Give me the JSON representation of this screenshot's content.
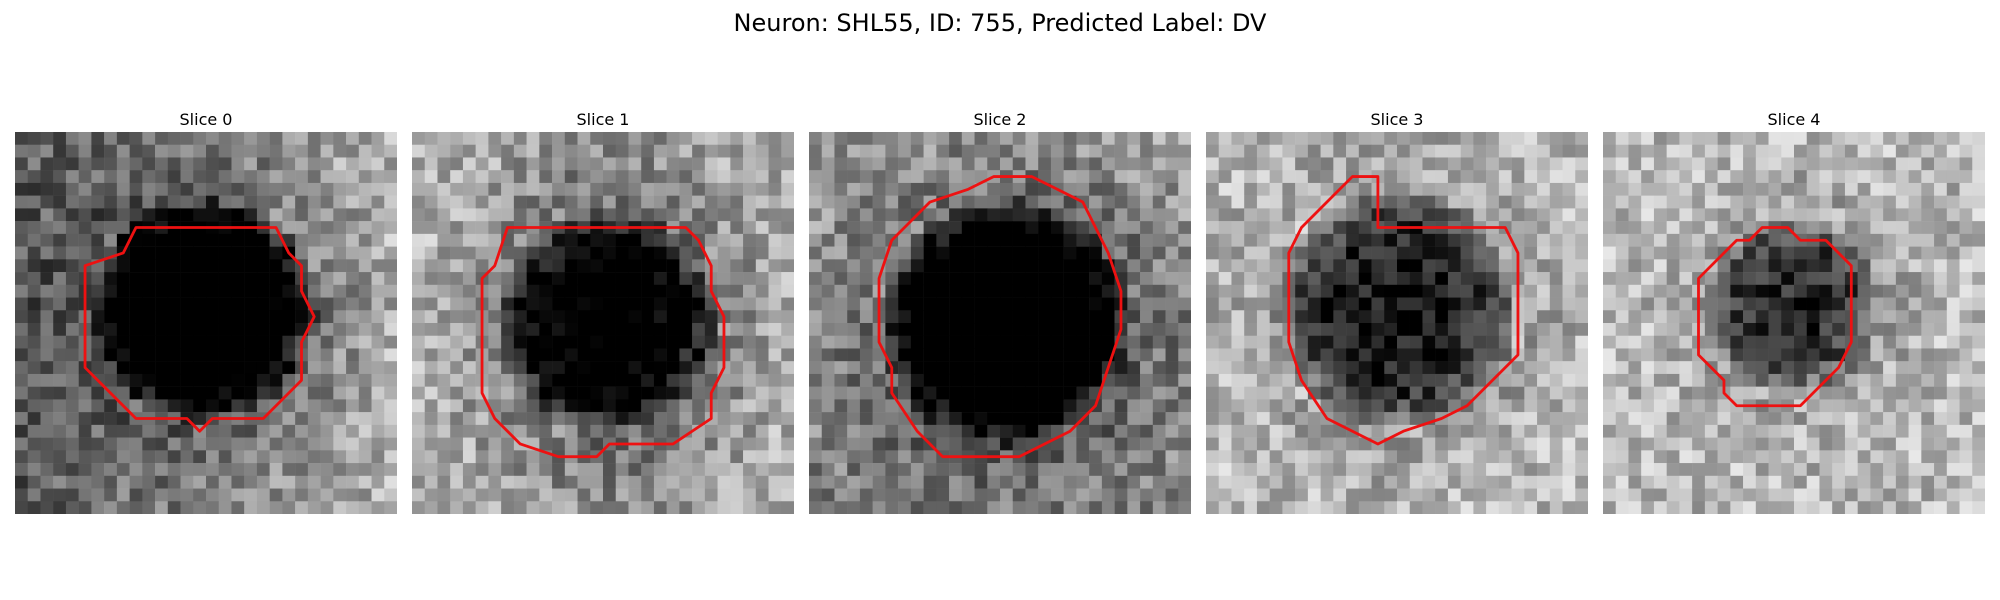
{
  "title": "Neuron: SHL55, ID: 755, Predicted Label: DV",
  "contour_color": "#ee1111",
  "panels": [
    {
      "label": "Slice 0",
      "seed": 11,
      "bright_side": "right",
      "blob": {
        "cx": 14.5,
        "cy": 13.5,
        "r": 9.5,
        "depth": 0.85
      },
      "contour": [
        [
          8.5,
          9.5
        ],
        [
          9.5,
          7.5
        ],
        [
          20.5,
          7.5
        ],
        [
          21.5,
          9.5
        ],
        [
          22.5,
          10.5
        ],
        [
          22.5,
          12.5
        ],
        [
          23.5,
          14.5
        ],
        [
          22.5,
          16.5
        ],
        [
          22.5,
          19.5
        ],
        [
          19.5,
          22.5
        ],
        [
          15.5,
          22.5
        ],
        [
          14.5,
          23.5
        ],
        [
          13.5,
          22.5
        ],
        [
          9.5,
          22.5
        ],
        [
          5.5,
          18.5
        ],
        [
          5.5,
          10.5
        ]
      ]
    },
    {
      "label": "Slice 1",
      "seed": 23,
      "bright_side": "both",
      "blob": {
        "cx": 15,
        "cy": 14.5,
        "r": 9.5,
        "depth": 0.7
      },
      "contour": [
        [
          6.5,
          10.5
        ],
        [
          7.5,
          7.5
        ],
        [
          21.5,
          7.5
        ],
        [
          22.5,
          8.5
        ],
        [
          23.5,
          10.5
        ],
        [
          23.5,
          12.5
        ],
        [
          24.5,
          14.5
        ],
        [
          24.5,
          18.5
        ],
        [
          23.5,
          20.5
        ],
        [
          23.5,
          22.5
        ],
        [
          20.5,
          24.5
        ],
        [
          15.5,
          24.5
        ],
        [
          14.5,
          25.5
        ],
        [
          11.5,
          25.5
        ],
        [
          8.5,
          24.5
        ],
        [
          6.5,
          22.5
        ],
        [
          5.5,
          20.5
        ],
        [
          5.5,
          11.5
        ]
      ]
    },
    {
      "label": "Slice 2",
      "seed": 37,
      "bright_side": "top",
      "blob": {
        "cx": 15,
        "cy": 14.5,
        "r": 10.5,
        "depth": 0.9
      },
      "contour": [
        [
          7.5,
          7.5
        ],
        [
          9.5,
          5.5
        ],
        [
          12.5,
          4.5
        ],
        [
          14.5,
          3.5
        ],
        [
          17.5,
          3.5
        ],
        [
          19.5,
          4.5
        ],
        [
          21.5,
          5.5
        ],
        [
          22.5,
          7.5
        ],
        [
          23.5,
          9.5
        ],
        [
          24.5,
          12.5
        ],
        [
          24.5,
          15.5
        ],
        [
          23.5,
          18.5
        ],
        [
          22.5,
          21.5
        ],
        [
          20.5,
          23.5
        ],
        [
          18.5,
          24.5
        ],
        [
          16.5,
          25.5
        ],
        [
          10.5,
          25.5
        ],
        [
          8.5,
          23.5
        ],
        [
          6.5,
          20.5
        ],
        [
          6.5,
          18.5
        ],
        [
          5.5,
          16.5
        ],
        [
          5.5,
          11.5
        ],
        [
          6.5,
          8.5
        ]
      ]
    },
    {
      "label": "Slice 3",
      "seed": 49,
      "bright_side": "all",
      "blob": {
        "cx": 14.5,
        "cy": 13.5,
        "r": 10,
        "depth": 0.65
      },
      "contour": [
        [
          6.5,
          9.5
        ],
        [
          7.5,
          7.5
        ],
        [
          10.5,
          4.5
        ],
        [
          11.5,
          3.5
        ],
        [
          13.5,
          3.5
        ],
        [
          13.5,
          7.5
        ],
        [
          23.5,
          7.5
        ],
        [
          24.5,
          9.5
        ],
        [
          24.5,
          17.5
        ],
        [
          20.5,
          21.5
        ],
        [
          18.5,
          22.5
        ],
        [
          15.5,
          23.5
        ],
        [
          13.5,
          24.5
        ],
        [
          11.5,
          23.5
        ],
        [
          9.5,
          22.5
        ],
        [
          7.5,
          19.5
        ],
        [
          6.5,
          16.5
        ],
        [
          6.5,
          10.5
        ]
      ]
    },
    {
      "label": "Slice 4",
      "seed": 61,
      "bright_side": "all",
      "blob": {
        "cx": 14.5,
        "cy": 13,
        "r": 7.5,
        "depth": 0.55
      },
      "contour": [
        [
          7.5,
          11.5
        ],
        [
          10.5,
          8.5
        ],
        [
          11.5,
          8.5
        ],
        [
          12.5,
          7.5
        ],
        [
          14.5,
          7.5
        ],
        [
          15.5,
          8.5
        ],
        [
          17.5,
          8.5
        ],
        [
          19.5,
          10.5
        ],
        [
          19.5,
          16.5
        ],
        [
          18.5,
          18.5
        ],
        [
          17.5,
          19.5
        ],
        [
          15.5,
          21.5
        ],
        [
          10.5,
          21.5
        ],
        [
          9.5,
          20.5
        ],
        [
          9.5,
          19.5
        ],
        [
          7.5,
          17.5
        ]
      ]
    }
  ]
}
